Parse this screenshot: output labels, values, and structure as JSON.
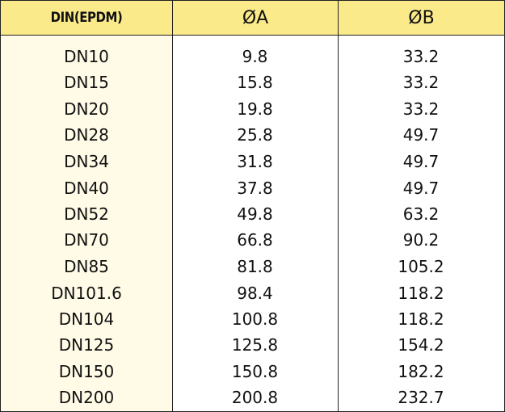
{
  "table": {
    "headers": [
      "DIN(EPDM)",
      "ØA",
      "ØB"
    ],
    "rows": [
      [
        "DN10",
        "9.8",
        "33.2"
      ],
      [
        "DN15",
        "15.8",
        "33.2"
      ],
      [
        "DN20",
        "19.8",
        "33.2"
      ],
      [
        "DN28",
        "25.8",
        "49.7"
      ],
      [
        "DN34",
        "31.8",
        "49.7"
      ],
      [
        "DN40",
        "37.8",
        "49.7"
      ],
      [
        "DN52",
        "49.8",
        "63.2"
      ],
      [
        "DN70",
        "66.8",
        "90.2"
      ],
      [
        "DN85",
        "81.8",
        "105.2"
      ],
      [
        "DN101.6",
        "98.4",
        "118.2"
      ],
      [
        "DN104",
        "100.8",
        "118.2"
      ],
      [
        "DN125",
        "125.8",
        "154.2"
      ],
      [
        "DN150",
        "150.8",
        "182.2"
      ],
      [
        "DN200",
        "200.8",
        "232.7"
      ]
    ]
  },
  "colors": {
    "header_bg": "#fbea8a",
    "first_column_bg": "#fffbe6",
    "border": "#222222"
  }
}
